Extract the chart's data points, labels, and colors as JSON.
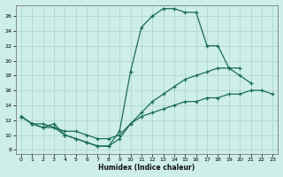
{
  "xlabel": "Humidex (Indice chaleur)",
  "xlim": [
    -0.5,
    23.5
  ],
  "ylim": [
    7.5,
    27.5
  ],
  "yticks": [
    8,
    10,
    12,
    14,
    16,
    18,
    20,
    22,
    24,
    26
  ],
  "xticks": [
    0,
    1,
    2,
    3,
    4,
    5,
    6,
    7,
    8,
    9,
    10,
    11,
    12,
    13,
    14,
    15,
    16,
    17,
    18,
    19,
    20,
    21,
    22,
    23
  ],
  "bg_color": "#ceeee8",
  "grid_color": "#aad4cc",
  "line_color": "#1a6b5a",
  "line1_x": [
    0,
    1,
    2,
    3,
    4,
    5,
    6,
    7,
    8,
    9,
    10,
    11,
    12,
    13,
    14,
    15,
    16,
    17,
    18,
    19,
    20,
    21
  ],
  "line1_y": [
    12.5,
    11.5,
    11.0,
    11.0,
    10.0,
    9.5,
    9.0,
    8.5,
    8.5,
    10.5,
    18.5,
    24.5,
    26.0,
    27.0,
    27.0,
    26.5,
    26.5,
    22.0,
    22.0,
    19.0,
    18.0,
    17.0
  ],
  "line2_x": [
    0,
    1,
    2,
    3,
    4,
    5,
    6,
    7,
    8,
    9,
    10,
    11,
    12,
    13,
    14,
    15,
    16,
    17,
    18,
    19,
    20
  ],
  "line2_y": [
    12.5,
    11.5,
    11.0,
    11.5,
    10.0,
    9.5,
    9.0,
    8.5,
    8.5,
    9.5,
    11.5,
    13.0,
    14.5,
    15.5,
    16.5,
    17.5,
    18.0,
    18.5,
    19.0,
    19.0,
    19.0
  ],
  "line3_x": [
    0,
    1,
    2,
    3,
    4,
    5,
    6,
    7,
    8,
    9,
    10,
    11,
    12,
    13,
    14,
    15,
    16,
    17,
    18,
    19,
    20,
    21,
    22,
    23
  ],
  "line3_y": [
    12.5,
    11.5,
    11.5,
    11.0,
    10.5,
    10.5,
    10.0,
    9.5,
    9.5,
    10.0,
    11.5,
    12.5,
    13.0,
    13.5,
    14.0,
    14.5,
    14.5,
    15.0,
    15.0,
    15.5,
    15.5,
    16.0,
    16.0,
    15.5
  ]
}
